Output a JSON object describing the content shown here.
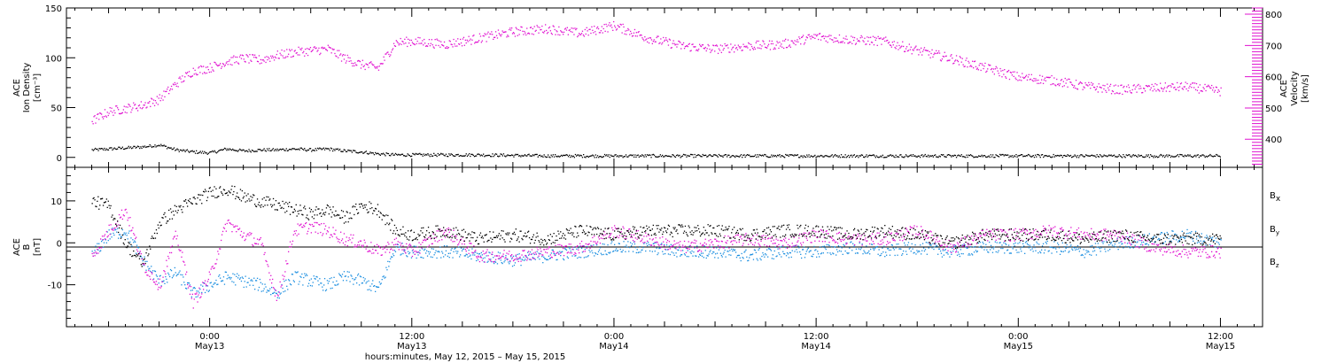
{
  "colors": {
    "density": "#000000",
    "velocity": "#e010d0",
    "bx": "#000000",
    "by": "#1a8ee0",
    "bz": "#e010d0"
  },
  "chart_data": [
    {
      "type": "scatter",
      "panel": "top",
      "ylabel_left": [
        "ACE",
        "Ion Density",
        "[cm⁻³]"
      ],
      "ylabel_right": [
        "ACE",
        "Velocity",
        "[km/s]"
      ],
      "ylim_left": [
        -10,
        150
      ],
      "ylim_right": [
        310,
        820
      ],
      "yticks_left": [
        "0",
        "50",
        "100",
        "150"
      ],
      "yticks_right": [
        "400",
        "500",
        "600",
        "700",
        "800"
      ],
      "series": [
        {
          "axis": "left",
          "x_hours": [
            -7,
            -6,
            -5,
            -4,
            -3,
            -2,
            -1,
            0,
            1,
            2,
            3,
            4,
            5,
            6,
            7,
            8,
            9,
            10,
            11,
            12,
            16,
            20,
            24,
            28,
            32,
            36,
            40,
            44,
            48,
            52,
            56,
            60
          ],
          "values": [
            8,
            9,
            10,
            11,
            13,
            8,
            6,
            5,
            9,
            7,
            8,
            8,
            9,
            8,
            9,
            7,
            6,
            4,
            3,
            3,
            3,
            2,
            2,
            2,
            2,
            2,
            2,
            2,
            2,
            2,
            2,
            2
          ]
        },
        {
          "axis": "right",
          "x_hours": [
            -7,
            -6,
            -5,
            -4,
            -3,
            -2,
            -1,
            0,
            1,
            2,
            3,
            4,
            5,
            6,
            7,
            8,
            9,
            10,
            11,
            12,
            14,
            16,
            18,
            20,
            22,
            24,
            26,
            28,
            30,
            32,
            34,
            36,
            38,
            40,
            42,
            44,
            46,
            48,
            50,
            52,
            54,
            56,
            58,
            60
          ],
          "values": [
            460,
            490,
            500,
            510,
            530,
            580,
            620,
            630,
            650,
            660,
            655,
            670,
            680,
            685,
            690,
            660,
            640,
            630,
            710,
            715,
            705,
            725,
            745,
            755,
            740,
            765,
            725,
            700,
            690,
            700,
            705,
            730,
            720,
            715,
            685,
            660,
            630,
            600,
            590,
            570,
            560,
            565,
            570,
            555
          ]
        }
      ]
    },
    {
      "type": "scatter",
      "panel": "bottom",
      "ylabel": [
        "ACE",
        "B",
        "[nT]"
      ],
      "ylim": [
        -20,
        18
      ],
      "yticks": [
        "-10",
        "0",
        "10"
      ],
      "legend": [
        "Bx",
        "By",
        "Bz"
      ],
      "series": [
        {
          "name": "Bx",
          "x_hours": [
            -7,
            -6,
            -5,
            -4,
            -3,
            -2,
            -1,
            0,
            1,
            2,
            3,
            4,
            5,
            6,
            7,
            8,
            9,
            10,
            11,
            12,
            14,
            16,
            18,
            20,
            22,
            24,
            26,
            28,
            30,
            32,
            34,
            36,
            38,
            40,
            42,
            44,
            46,
            48,
            50,
            52,
            54,
            56,
            58,
            60
          ],
          "values": [
            10,
            9,
            0,
            -5,
            5,
            8,
            10,
            12,
            13,
            11,
            10,
            9,
            8,
            7,
            8,
            6,
            9,
            8,
            3,
            2,
            3,
            1,
            2,
            1,
            3,
            2,
            3,
            3,
            3,
            2,
            3,
            3,
            2,
            3,
            2,
            0,
            2,
            2,
            2,
            1,
            2,
            1,
            1,
            1
          ]
        },
        {
          "name": "By",
          "x_hours": [
            -7,
            -6,
            -5,
            -4,
            -3,
            -2,
            -1,
            0,
            1,
            2,
            3,
            4,
            5,
            6,
            7,
            8,
            9,
            10,
            11,
            12,
            14,
            16,
            18,
            20,
            22,
            24,
            26,
            28,
            30,
            32,
            34,
            36,
            38,
            40,
            42,
            44,
            46,
            48,
            50,
            52,
            54,
            56,
            58,
            60
          ],
          "values": [
            -3,
            2,
            3,
            -4,
            -9,
            -7,
            -12,
            -10,
            -8,
            -9,
            -10,
            -12,
            -8,
            -9,
            -10,
            -8,
            -9,
            -11,
            -1,
            -2,
            -2,
            -3,
            -4,
            -3,
            -2,
            -1,
            -1,
            -2,
            -2,
            -3,
            -2,
            -2,
            -1,
            -2,
            -1,
            -2,
            -1,
            -1,
            -1,
            -2,
            0,
            1,
            2,
            0
          ]
        },
        {
          "name": "Bz",
          "x_hours": [
            -7,
            -6,
            -5,
            -4,
            -3,
            -2,
            -1,
            0,
            1,
            2,
            3,
            4,
            5,
            6,
            7,
            8,
            9,
            10,
            11,
            12,
            14,
            16,
            18,
            20,
            22,
            24,
            26,
            28,
            30,
            32,
            34,
            36,
            38,
            40,
            42,
            44,
            46,
            48,
            50,
            52,
            54,
            56,
            58,
            60
          ],
          "values": [
            -3,
            3,
            8,
            -5,
            -10,
            2,
            -14,
            -8,
            5,
            2,
            0,
            -13,
            3,
            4,
            3,
            1,
            0,
            -2,
            0,
            -2,
            3,
            -3,
            -3,
            -2,
            -1,
            3,
            1,
            -1,
            0,
            1,
            0,
            2,
            1,
            1,
            3,
            -1,
            2,
            2,
            3,
            2,
            2,
            -1,
            -2,
            -2
          ]
        }
      ]
    }
  ],
  "x_axis": {
    "xlim_hours": [
      -8.5,
      62.5
    ],
    "tick_labels": [
      {
        "hour": 0,
        "time": "0:00",
        "date": "May13"
      },
      {
        "hour": 12,
        "time": "12:00",
        "date": "May13"
      },
      {
        "hour": 24,
        "time": "0:00",
        "date": "May14"
      },
      {
        "hour": 36,
        "time": "12:00",
        "date": "May14"
      },
      {
        "hour": 48,
        "time": "0:00",
        "date": "May15"
      },
      {
        "hour": 60,
        "time": "12:00",
        "date": "May15"
      }
    ],
    "title": "hours:minutes, May 12, 2015 – May 15, 2015"
  },
  "legend_labels": {
    "bx": "B",
    "bx_sub": "x",
    "by": "B",
    "by_sub": "y",
    "bz": "B",
    "bz_sub": "z"
  }
}
